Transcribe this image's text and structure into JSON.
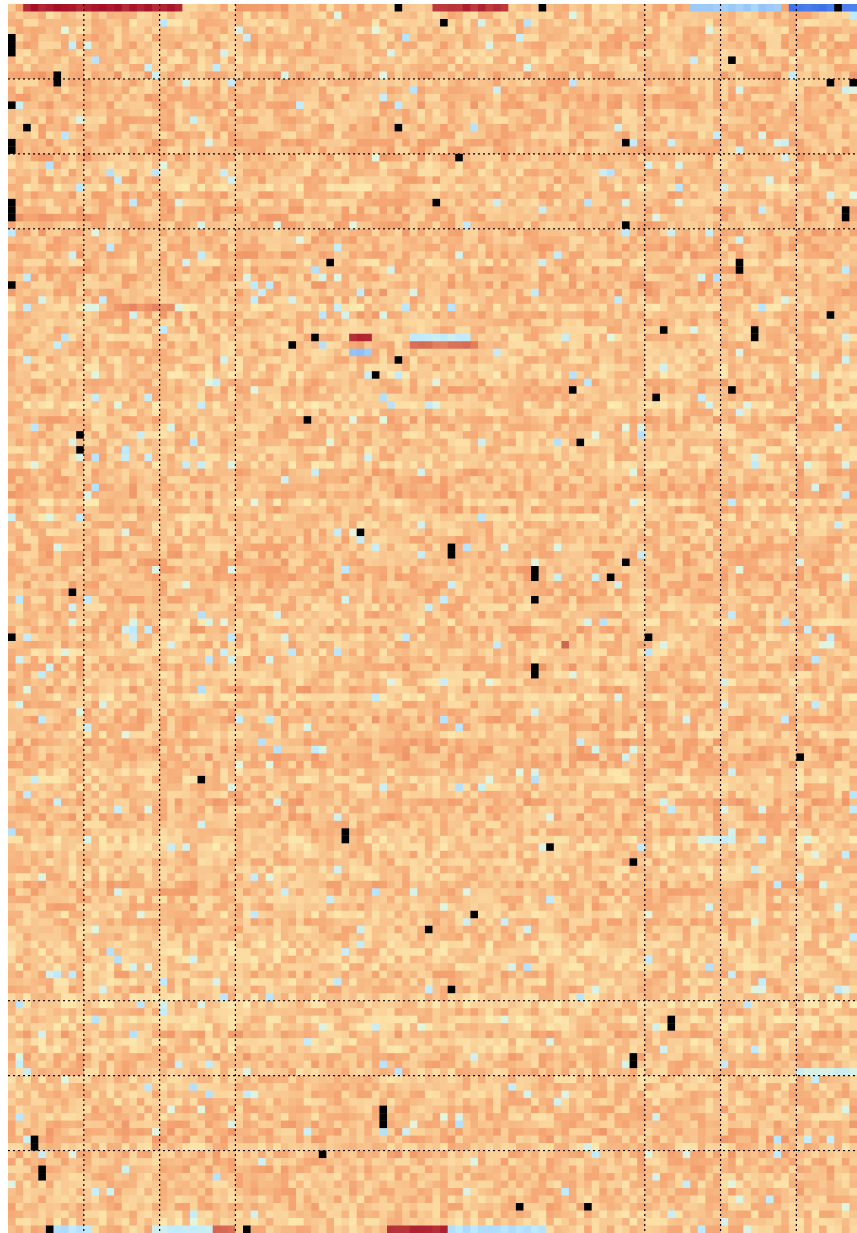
{
  "chart_data": {
    "type": "heatmap",
    "title": "",
    "xlabel": "",
    "ylabel": "",
    "grid": {
      "rows": 164,
      "cols": 112
    },
    "colormap": {
      "name": "diverging",
      "low": "#3a6fe8",
      "low_mid": "#bfeaff",
      "mid": "#ffffc2",
      "high_mid": "#f4a06e",
      "high": "#a50f28",
      "missing": "#000000"
    },
    "baseline_value": 0.32,
    "hot_spots": [
      {
        "row": 0,
        "col_start": 2,
        "col_end": 22,
        "value": 1.0
      },
      {
        "row": 0,
        "col_start": 56,
        "col_end": 65,
        "value": 0.95
      },
      {
        "row": 0,
        "col_start": 30,
        "col_end": 36,
        "value": 0.55
      },
      {
        "row": 44,
        "col_start": 45,
        "col_end": 47,
        "value": 0.95
      },
      {
        "row": 45,
        "col_start": 53,
        "col_end": 61,
        "value": 0.7
      },
      {
        "row": 40,
        "col_start": 14,
        "col_end": 21,
        "value": 0.6
      },
      {
        "row": 163,
        "col_start": 50,
        "col_end": 58,
        "value": 0.95
      },
      {
        "row": 163,
        "col_start": 27,
        "col_end": 29,
        "value": 0.75
      },
      {
        "row": 28,
        "col_start": 0,
        "col_end": 10,
        "value": 0.55
      },
      {
        "row": 85,
        "col_start": 73,
        "col_end": 73,
        "value": 0.8
      }
    ],
    "cold_spots": [
      {
        "row": 0,
        "col_start": 90,
        "col_end": 101,
        "value": -0.55
      },
      {
        "row": 0,
        "col_start": 103,
        "col_end": 111,
        "value": -1.0
      },
      {
        "row": 46,
        "col_start": 45,
        "col_end": 47,
        "value": -0.6
      },
      {
        "row": 44,
        "col_start": 53,
        "col_end": 60,
        "value": -0.35
      },
      {
        "row": 163,
        "col_start": 58,
        "col_end": 70,
        "value": -0.45
      },
      {
        "row": 163,
        "col_start": 6,
        "col_end": 10,
        "value": -0.45
      },
      {
        "row": 163,
        "col_start": 19,
        "col_end": 26,
        "value": -0.35
      },
      {
        "row": 142,
        "col_start": 104,
        "col_end": 111,
        "value": -0.3
      },
      {
        "row": 111,
        "col_start": 91,
        "col_end": 95,
        "value": -0.3
      }
    ],
    "missing_cells": [
      [
        0,
        51
      ],
      [
        0,
        70
      ],
      [
        0,
        109
      ],
      [
        2,
        57
      ],
      [
        4,
        0
      ],
      [
        5,
        0
      ],
      [
        6,
        0
      ],
      [
        7,
        95
      ],
      [
        9,
        6
      ],
      [
        10,
        6
      ],
      [
        10,
        108
      ],
      [
        10,
        111
      ],
      [
        13,
        0
      ],
      [
        16,
        2
      ],
      [
        16,
        51
      ],
      [
        18,
        0
      ],
      [
        19,
        0
      ],
      [
        18,
        81
      ],
      [
        20,
        59
      ],
      [
        26,
        56
      ],
      [
        26,
        0
      ],
      [
        27,
        0
      ],
      [
        28,
        0
      ],
      [
        27,
        110
      ],
      [
        28,
        110
      ],
      [
        29,
        81
      ],
      [
        34,
        42
      ],
      [
        34,
        96
      ],
      [
        35,
        96
      ],
      [
        37,
        0
      ],
      [
        41,
        108
      ],
      [
        43,
        86
      ],
      [
        43,
        98
      ],
      [
        44,
        98
      ],
      [
        44,
        40
      ],
      [
        45,
        37
      ],
      [
        47,
        51
      ],
      [
        49,
        48
      ],
      [
        51,
        74
      ],
      [
        51,
        95
      ],
      [
        52,
        85
      ],
      [
        55,
        39
      ],
      [
        57,
        9
      ],
      [
        59,
        9
      ],
      [
        58,
        75
      ],
      [
        70,
        46
      ],
      [
        72,
        58
      ],
      [
        73,
        58
      ],
      [
        74,
        81
      ],
      [
        75,
        69
      ],
      [
        76,
        69
      ],
      [
        76,
        79
      ],
      [
        78,
        8
      ],
      [
        79,
        69
      ],
      [
        84,
        0
      ],
      [
        84,
        84
      ],
      [
        88,
        69
      ],
      [
        89,
        69
      ],
      [
        100,
        104
      ],
      [
        103,
        25
      ],
      [
        110,
        44
      ],
      [
        111,
        44
      ],
      [
        112,
        71
      ],
      [
        114,
        82
      ],
      [
        121,
        61
      ],
      [
        123,
        55
      ],
      [
        131,
        58
      ],
      [
        135,
        87
      ],
      [
        136,
        87
      ],
      [
        140,
        82
      ],
      [
        141,
        82
      ],
      [
        147,
        49
      ],
      [
        148,
        49
      ],
      [
        149,
        49
      ],
      [
        151,
        3
      ],
      [
        152,
        3
      ],
      [
        153,
        41
      ],
      [
        155,
        4
      ],
      [
        156,
        4
      ],
      [
        160,
        67
      ],
      [
        160,
        76
      ],
      [
        163,
        5
      ],
      [
        163,
        31
      ]
    ],
    "gridlines": {
      "vertical_cols": [
        10,
        20,
        30,
        84,
        94,
        104
      ],
      "horizontal_rows": [
        10,
        20,
        30,
        133,
        143,
        153
      ],
      "style": "dotted"
    }
  }
}
